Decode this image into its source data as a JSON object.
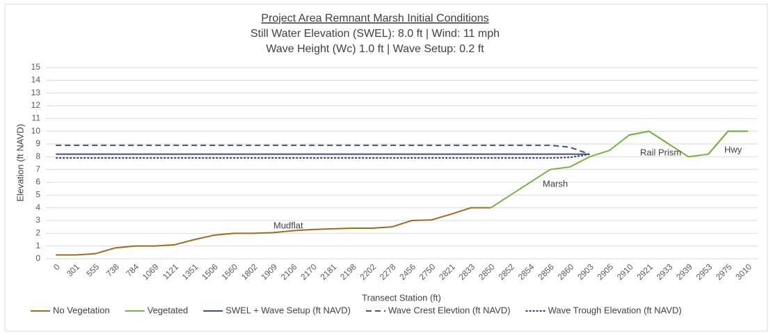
{
  "chart_data": {
    "type": "line",
    "title": "Project Area Remnant Marsh Initial Conditions",
    "subtitle": [
      "Still Water Elevation  (SWEL): 8.0 ft | Wind: 11 mph",
      "Wave Height (Wc) 1.0 ft | Wave Setup: 0.2 ft"
    ],
    "x_label": "Transect Station (ft)",
    "y_label": "Elevation (ft NAVD)",
    "categories": [
      "0",
      "301",
      "555",
      "738",
      "784",
      "1069",
      "1121",
      "1351",
      "1506",
      "1560",
      "1802",
      "1909",
      "2106",
      "2170",
      "2181",
      "2198",
      "2202",
      "2278",
      "2456",
      "2750",
      "2821",
      "2833",
      "2850",
      "2852",
      "2854",
      "2856",
      "2860",
      "2903",
      "2905",
      "2910",
      "2921",
      "2933",
      "2939",
      "2953",
      "2975",
      "3010"
    ],
    "ylim": [
      0,
      15
    ],
    "yticks": [
      0,
      1,
      2,
      3,
      4,
      5,
      6,
      7,
      8,
      9,
      10,
      11,
      12,
      13,
      14,
      15
    ],
    "grid": true,
    "legend": "bottom",
    "annotations": [
      "Mudflat",
      "Marsh",
      "Rail Prism",
      "Hwy"
    ],
    "series": [
      {
        "name": "No Vegetation",
        "color": "#9c6b1e",
        "dash": "solid",
        "values": [
          0.3,
          0.3,
          0.4,
          0.85,
          1.0,
          1.0,
          1.1,
          1.5,
          1.85,
          2.0,
          2.0,
          2.05,
          2.2,
          2.3,
          2.35,
          2.4,
          2.4,
          2.5,
          3.0,
          3.05,
          3.5,
          4.0,
          4.0,
          null,
          null,
          null,
          null,
          null,
          null,
          9.7,
          10,
          9.0,
          null,
          8.2,
          10,
          10
        ]
      },
      {
        "name": "Vegetated",
        "color": "#77b347",
        "dash": "solid",
        "values": [
          null,
          null,
          null,
          null,
          null,
          null,
          null,
          null,
          null,
          null,
          null,
          null,
          null,
          null,
          null,
          null,
          null,
          null,
          null,
          null,
          null,
          null,
          4.0,
          5.0,
          6.0,
          7.0,
          7.2,
          8.0,
          8.5,
          9.7,
          10,
          9.0,
          8.0,
          8.2,
          10,
          10
        ]
      },
      {
        "name": "SWEL + Wave Setup (ft NAVD)",
        "color": "#3d4f7c",
        "dash": "solid",
        "values": [
          8.2,
          8.2,
          8.2,
          8.2,
          8.2,
          8.2,
          8.2,
          8.2,
          8.2,
          8.2,
          8.2,
          8.2,
          8.2,
          8.2,
          8.2,
          8.2,
          8.2,
          8.2,
          8.2,
          8.2,
          8.2,
          8.2,
          8.2,
          8.2,
          8.2,
          8.2,
          8.2,
          8.2,
          null,
          null,
          null,
          null,
          null,
          null,
          null,
          null
        ]
      },
      {
        "name": "Wave Crest Elevtion (ft NAVD)",
        "color": "#44546a",
        "dash": "long",
        "values": [
          8.9,
          8.9,
          8.9,
          8.9,
          8.9,
          8.9,
          8.9,
          8.9,
          8.9,
          8.9,
          8.9,
          8.9,
          8.9,
          8.9,
          8.9,
          8.9,
          8.9,
          8.9,
          8.9,
          8.9,
          8.9,
          8.9,
          8.9,
          8.9,
          8.9,
          8.9,
          8.75,
          8.2,
          null,
          null,
          null,
          null,
          null,
          null,
          null,
          null
        ]
      },
      {
        "name": "Wave Trough Elevation (ft NAVD)",
        "color": "#2f3f6f",
        "dash": "short",
        "values": [
          7.9,
          7.9,
          7.9,
          7.9,
          7.9,
          7.9,
          7.9,
          7.9,
          7.9,
          7.9,
          7.9,
          7.9,
          7.9,
          7.9,
          7.9,
          7.9,
          7.9,
          7.9,
          7.9,
          7.9,
          7.9,
          7.9,
          7.9,
          7.9,
          7.9,
          7.9,
          7.95,
          8.2,
          null,
          null,
          null,
          null,
          null,
          null,
          null,
          null
        ]
      }
    ]
  }
}
